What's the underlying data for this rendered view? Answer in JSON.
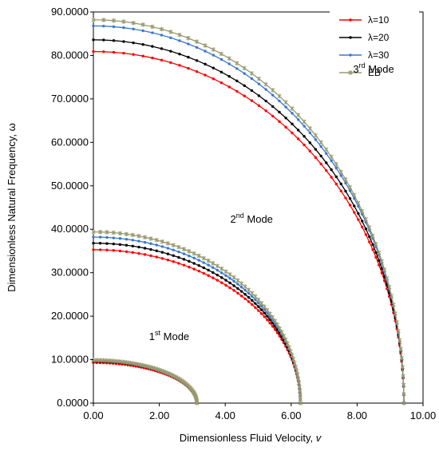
{
  "chart_data": {
    "type": "line",
    "xlabel": "Dimensionless Fluid Velocity, ",
    "xlabel_symbol": "v",
    "ylabel": "Dimensionless Natural Frequency, ω",
    "xlim": [
      0,
      10
    ],
    "ylim": [
      0,
      90
    ],
    "x_ticks": [
      "0.00",
      "2.00",
      "4.00",
      "6.00",
      "8.00",
      "10.00"
    ],
    "x_tick_values": [
      0,
      2,
      4,
      6,
      8,
      10
    ],
    "y_ticks": [
      "0.0000",
      "10.0000",
      "20.0000",
      "30.0000",
      "40.0000",
      "50.0000",
      "60.0000",
      "70.0000",
      "80.0000",
      "90.0000"
    ],
    "y_tick_values": [
      0,
      10,
      20,
      30,
      40,
      50,
      60,
      70,
      80,
      90
    ],
    "grid": false,
    "legend_position": "top-right",
    "annotations": [
      {
        "base": "1",
        "sup": "st",
        "rest": " Mode",
        "x": 2.3,
        "y": 14.5
      },
      {
        "base": "2",
        "sup": "nd",
        "rest": " Mode",
        "x": 4.8,
        "y": 41.5
      },
      {
        "base": "3",
        "sup": "rd",
        "rest": " Mode",
        "x": 8.5,
        "y": 76.0
      }
    ],
    "series": [
      {
        "name": "λ=10",
        "color": "#ff0000",
        "marker": "circle",
        "modes": [
          {
            "omega0": 9.3,
            "vc": 3.14
          },
          {
            "omega0": 35.3,
            "vc": 6.28
          },
          {
            "omega0": 80.9,
            "vc": 9.42
          }
        ]
      },
      {
        "name": "λ=20",
        "color": "#000000",
        "marker": "circle",
        "modes": [
          {
            "omega0": 9.6,
            "vc": 3.14
          },
          {
            "omega0": 36.8,
            "vc": 6.28
          },
          {
            "omega0": 83.6,
            "vc": 9.42
          }
        ]
      },
      {
        "name": "λ=30",
        "color": "#3a78c9",
        "marker": "circle",
        "modes": [
          {
            "omega0": 9.8,
            "vc": 3.14
          },
          {
            "omega0": 38.2,
            "vc": 6.28
          },
          {
            "omega0": 86.8,
            "vc": 9.42
          }
        ]
      },
      {
        "name": "EB",
        "color": "#9a9a70",
        "marker": "star",
        "modes": [
          {
            "omega0": 9.9,
            "vc": 3.14
          },
          {
            "omega0": 39.4,
            "vc": 6.28
          },
          {
            "omega0": 88.2,
            "vc": 9.42
          }
        ]
      }
    ]
  }
}
